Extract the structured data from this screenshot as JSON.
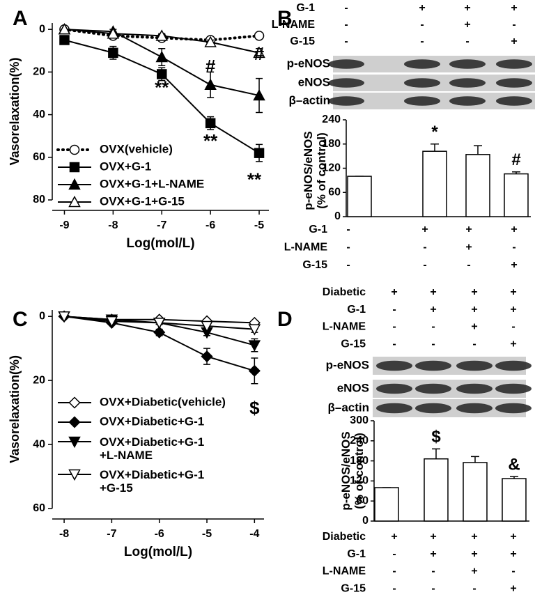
{
  "chart_data": [
    {
      "panel": "A",
      "type": "line",
      "xlabel": "Log(mol/L)",
      "ylabel": "Vasorelaxation(%)",
      "x": [
        -9,
        -8,
        -7,
        -6,
        -5
      ],
      "xlim": [
        -9.25,
        -4.8
      ],
      "xticks": [
        -9,
        -8,
        -7,
        -6,
        -5
      ],
      "ylim": [
        -3,
        80
      ],
      "yticks": [
        0,
        20,
        40,
        60,
        80
      ],
      "y_inverted": true,
      "series": [
        {
          "name": "OVX(vehicle)",
          "color": "#000000",
          "marker": "circle",
          "marker_fill": "#ffffff",
          "line_style": "dotted",
          "values": [
            0,
            3,
            4,
            5,
            3
          ],
          "errors": [
            0,
            1,
            1,
            1,
            1
          ]
        },
        {
          "name": "OVX+G-1",
          "color": "#000000",
          "marker": "square",
          "marker_fill": "#000000",
          "line_style": "solid",
          "values": [
            5,
            11,
            21,
            44,
            58
          ],
          "errors": [
            1,
            3,
            3,
            3,
            4
          ]
        },
        {
          "name": "OVX+G-1+L-NAME",
          "color": "#000000",
          "marker": "triangle-up",
          "marker_fill": "#000000",
          "line_style": "solid",
          "values": [
            0,
            1,
            13,
            26,
            31
          ],
          "errors": [
            0,
            1,
            4,
            6,
            8
          ]
        },
        {
          "name": "OVX+G-1+G-15",
          "color": "#000000",
          "marker": "triangle-up",
          "marker_fill": "#ffffff",
          "line_style": "solid",
          "values": [
            0,
            2,
            3,
            6,
            11
          ],
          "errors": [
            0,
            1,
            1,
            1,
            2
          ]
        }
      ],
      "annotations": [
        {
          "text": "**",
          "x": -7,
          "y": 28
        },
        {
          "text": "#",
          "x": -6,
          "y": 18
        },
        {
          "text": "**",
          "x": -6,
          "y": 53
        },
        {
          "text": "#",
          "x": -5,
          "y": 12
        },
        {
          "text": "**",
          "x": -5.1,
          "y": 71
        }
      ]
    },
    {
      "panel": "B",
      "type": "bar",
      "ylabel": "p-eNOS/eNOS\n(% of control)",
      "values": [
        100,
        162,
        154,
        106
      ],
      "errors": [
        0,
        18,
        22,
        5
      ],
      "color": "#ffffff",
      "ylim": [
        0,
        240
      ],
      "yticks": [
        0,
        60,
        120,
        180,
        240
      ],
      "rows": [
        {
          "label": "G-1",
          "signs": [
            "-",
            "+",
            "+",
            "+"
          ]
        },
        {
          "label": "L-NAME",
          "signs": [
            "-",
            "-",
            "+",
            "-"
          ]
        },
        {
          "label": "G-15",
          "signs": [
            "-",
            "-",
            "-",
            "+"
          ]
        }
      ],
      "blot_labels": [
        "p-eNOS",
        "eNOS",
        "β–actin"
      ],
      "annotations": [
        {
          "text": "*",
          "index": 1
        },
        {
          "text": "#",
          "index": 3
        }
      ]
    },
    {
      "panel": "C",
      "type": "line",
      "xlabel": "Log(mol/L)",
      "ylabel": "Vasorelaxation(%)",
      "x": [
        -8,
        -7,
        -6,
        -5,
        -4
      ],
      "xlim": [
        -8.25,
        -3.8
      ],
      "xticks": [
        -8,
        -7,
        -6,
        -5,
        -4
      ],
      "ylim": [
        -2,
        60
      ],
      "yticks": [
        0,
        20,
        40,
        60
      ],
      "y_inverted": true,
      "series": [
        {
          "name": "OVX+Diabetic(vehicle)",
          "color": "#000000",
          "marker": "diamond",
          "marker_fill": "#ffffff",
          "line_style": "solid",
          "values": [
            0,
            1,
            1,
            1.5,
            2
          ],
          "errors": [
            0,
            0.5,
            0.5,
            0.5,
            0.5
          ]
        },
        {
          "name": "OVX+Diabetic+G-1",
          "color": "#000000",
          "marker": "diamond",
          "marker_fill": "#000000",
          "line_style": "solid",
          "values": [
            0,
            2,
            5,
            12.5,
            17
          ],
          "errors": [
            0,
            0.5,
            1,
            2.5,
            4
          ]
        },
        {
          "name": "OVX+Diabetic+G-1\n+L-NAME",
          "color": "#000000",
          "marker": "triangle-down",
          "marker_fill": "#000000",
          "line_style": "solid",
          "values": [
            0,
            1,
            2,
            5,
            9
          ],
          "errors": [
            0,
            0.5,
            0.5,
            1,
            2
          ]
        },
        {
          "name": "OVX+Diabetic+G-1\n+G-15",
          "color": "#000000",
          "marker": "triangle-down",
          "marker_fill": "#ffffff",
          "line_style": "solid",
          "values": [
            0,
            1.5,
            2,
            3,
            4
          ],
          "errors": [
            0,
            0.5,
            0.5,
            0.5,
            1
          ]
        }
      ],
      "annotations": [
        {
          "text": "$",
          "x": -4,
          "y": 29
        }
      ]
    },
    {
      "panel": "D",
      "type": "bar",
      "ylabel": "p-eNOS/eNOS\n(% of control)",
      "values": [
        100,
        186,
        175,
        127
      ],
      "errors": [
        0,
        30,
        18,
        6
      ],
      "color": "#ffffff",
      "ylim": [
        0,
        300
      ],
      "yticks": [
        0,
        60,
        120,
        180,
        240,
        300
      ],
      "rows": [
        {
          "label": "Diabetic",
          "signs": [
            "+",
            "+",
            "+",
            "+"
          ]
        },
        {
          "label": "G-1",
          "signs": [
            "-",
            "+",
            "+",
            "+"
          ]
        },
        {
          "label": "L-NAME",
          "signs": [
            "-",
            "-",
            "+",
            "-"
          ]
        },
        {
          "label": "G-15",
          "signs": [
            "-",
            "-",
            "-",
            "+"
          ]
        }
      ],
      "blot_labels": [
        "p-eNOS",
        "eNOS",
        "β–actin"
      ],
      "annotations": [
        {
          "text": "$",
          "index": 1
        },
        {
          "text": "&",
          "index": 3
        }
      ]
    }
  ]
}
